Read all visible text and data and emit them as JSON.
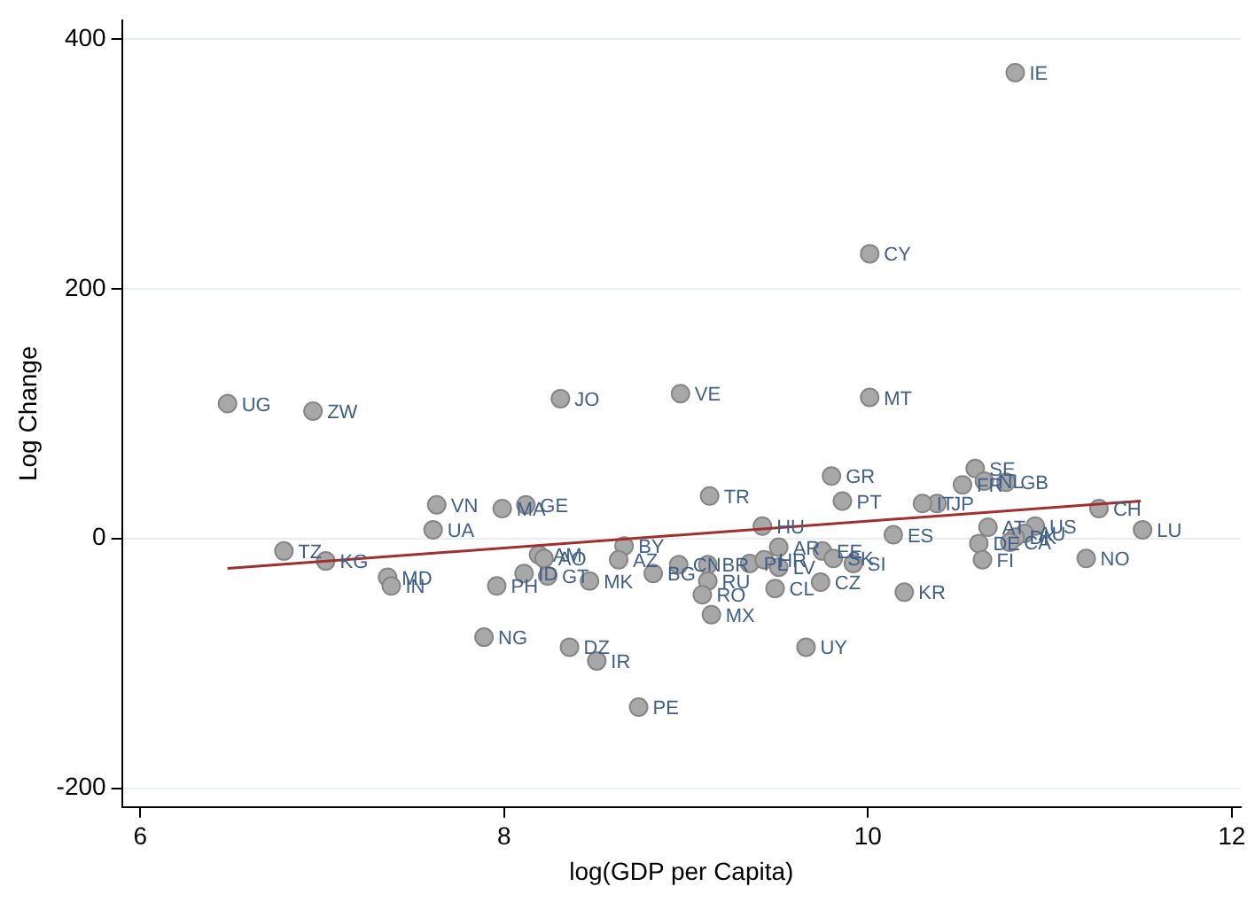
{
  "chart_data": {
    "type": "scatter",
    "xlabel": "log(GDP per Capita)",
    "ylabel": "Log Change",
    "xlim": [
      5.9,
      12.05
    ],
    "ylim": [
      -215,
      415
    ],
    "xticks": [
      6,
      8,
      10,
      12
    ],
    "yticks": [
      -200,
      0,
      200,
      400
    ],
    "grid": "y",
    "legend": false,
    "marker": "circle",
    "series": [
      {
        "type": "scatter",
        "color": "#a8a8a8",
        "x": [
          6.48,
          6.95,
          8.31,
          8.97,
          10.81,
          10.01,
          10.01,
          7.63,
          7.99,
          8.12,
          7.61,
          6.79,
          7.02,
          7.36,
          7.38,
          7.96,
          7.89,
          8.19,
          8.22,
          8.11,
          8.24,
          8.47,
          8.66,
          8.63,
          8.82,
          8.96,
          9.12,
          9.12,
          9.09,
          9.14,
          8.36,
          8.51,
          8.74,
          9.13,
          9.8,
          9.86,
          9.42,
          10.14,
          9.35,
          9.43,
          9.51,
          9.51,
          9.75,
          9.81,
          9.92,
          9.49,
          9.74,
          10.2,
          9.66,
          10.59,
          10.64,
          10.76,
          10.52,
          10.38,
          10.3,
          11.27,
          11.51,
          11.2,
          10.66,
          10.61,
          10.63,
          10.92,
          10.86,
          10.81,
          10.78
        ],
        "values": [
          108,
          102,
          112,
          116,
          373,
          228,
          113,
          27,
          24,
          27,
          7,
          -10,
          -18,
          -31,
          -38,
          -38,
          -79,
          -13,
          -16,
          -28,
          -30,
          -34,
          -6,
          -17,
          -28,
          -21,
          -21,
          -34,
          -45,
          -61,
          -87,
          -98,
          -135,
          34,
          50,
          30,
          10,
          3,
          -20,
          -17,
          -23,
          -7,
          -10,
          -16,
          -20,
          -40,
          -35,
          -43,
          -87,
          56,
          46,
          45,
          43,
          28,
          28,
          24,
          7,
          -16,
          9,
          -4,
          -17,
          10,
          4,
          1,
          -3
        ]
      },
      {
        "type": "line",
        "marker": "none",
        "color": "#a03030",
        "x": [
          6.48,
          11.5
        ],
        "values": [
          -24,
          30
        ]
      }
    ],
    "annotations": [
      {
        "text": "UG",
        "x": 6.48,
        "y": 108
      },
      {
        "text": "ZW",
        "x": 6.95,
        "y": 102
      },
      {
        "text": "JO",
        "x": 8.31,
        "y": 112
      },
      {
        "text": "VE",
        "x": 8.97,
        "y": 116
      },
      {
        "text": "IE",
        "x": 10.81,
        "y": 373
      },
      {
        "text": "CY",
        "x": 10.01,
        "y": 228
      },
      {
        "text": "MT",
        "x": 10.01,
        "y": 113
      },
      {
        "text": "VN",
        "x": 7.63,
        "y": 27
      },
      {
        "text": "MA",
        "x": 7.99,
        "y": 24
      },
      {
        "text": "GE",
        "x": 8.12,
        "y": 27
      },
      {
        "text": "UA",
        "x": 7.61,
        "y": 7
      },
      {
        "text": "TZ",
        "x": 6.79,
        "y": -10
      },
      {
        "text": "KG",
        "x": 7.02,
        "y": -18
      },
      {
        "text": "MD",
        "x": 7.36,
        "y": -31
      },
      {
        "text": "IN",
        "x": 7.38,
        "y": -38
      },
      {
        "text": "PH",
        "x": 7.96,
        "y": -38
      },
      {
        "text": "NG",
        "x": 7.89,
        "y": -79
      },
      {
        "text": "AM",
        "x": 8.19,
        "y": -13
      },
      {
        "text": "AO",
        "x": 8.22,
        "y": -16
      },
      {
        "text": "ID",
        "x": 8.11,
        "y": -28
      },
      {
        "text": "GT",
        "x": 8.24,
        "y": -30
      },
      {
        "text": "MK",
        "x": 8.47,
        "y": -34
      },
      {
        "text": "BY",
        "x": 8.66,
        "y": -6
      },
      {
        "text": "AZ",
        "x": 8.63,
        "y": -17
      },
      {
        "text": "BG",
        "x": 8.82,
        "y": -28
      },
      {
        "text": "CN",
        "x": 8.96,
        "y": -21
      },
      {
        "text": "BR",
        "x": 9.12,
        "y": -21
      },
      {
        "text": "RU",
        "x": 9.12,
        "y": -34
      },
      {
        "text": "RO",
        "x": 9.09,
        "y": -45
      },
      {
        "text": "MX",
        "x": 9.14,
        "y": -61
      },
      {
        "text": "DZ",
        "x": 8.36,
        "y": -87
      },
      {
        "text": "IR",
        "x": 8.51,
        "y": -98
      },
      {
        "text": "PE",
        "x": 8.74,
        "y": -135
      },
      {
        "text": "TR",
        "x": 9.13,
        "y": 34
      },
      {
        "text": "GR",
        "x": 9.8,
        "y": 50
      },
      {
        "text": "PT",
        "x": 9.86,
        "y": 30
      },
      {
        "text": "HU",
        "x": 9.42,
        "y": 10
      },
      {
        "text": "ES",
        "x": 10.14,
        "y": 3
      },
      {
        "text": "PL",
        "x": 9.35,
        "y": -20
      },
      {
        "text": "HR",
        "x": 9.43,
        "y": -17
      },
      {
        "text": "LV",
        "x": 9.51,
        "y": -23
      },
      {
        "text": "AR",
        "x": 9.51,
        "y": -7
      },
      {
        "text": "EE",
        "x": 9.75,
        "y": -10
      },
      {
        "text": "SK",
        "x": 9.81,
        "y": -16
      },
      {
        "text": "SI",
        "x": 9.92,
        "y": -20
      },
      {
        "text": "CL",
        "x": 9.49,
        "y": -40
      },
      {
        "text": "CZ",
        "x": 9.74,
        "y": -35
      },
      {
        "text": "KR",
        "x": 10.2,
        "y": -43
      },
      {
        "text": "UY",
        "x": 9.66,
        "y": -87
      },
      {
        "text": "SE",
        "x": 10.59,
        "y": 56
      },
      {
        "text": "NL",
        "x": 10.64,
        "y": 46
      },
      {
        "text": "GB",
        "x": 10.76,
        "y": 45
      },
      {
        "text": "FR",
        "x": 10.52,
        "y": 43
      },
      {
        "text": "JP",
        "x": 10.38,
        "y": 28
      },
      {
        "text": "IT",
        "x": 10.3,
        "y": 28
      },
      {
        "text": "CH",
        "x": 11.27,
        "y": 24
      },
      {
        "text": "LU",
        "x": 11.51,
        "y": 7
      },
      {
        "text": "NO",
        "x": 11.2,
        "y": -16
      },
      {
        "text": "AT",
        "x": 10.66,
        "y": 9
      },
      {
        "text": "DE",
        "x": 10.61,
        "y": -4
      },
      {
        "text": "FI",
        "x": 10.63,
        "y": -17
      },
      {
        "text": "US",
        "x": 10.92,
        "y": 10
      },
      {
        "text": "AU",
        "x": 10.86,
        "y": 4
      },
      {
        "text": "DK",
        "x": 10.81,
        "y": 1
      },
      {
        "text": "CA",
        "x": 10.78,
        "y": -3
      }
    ]
  }
}
